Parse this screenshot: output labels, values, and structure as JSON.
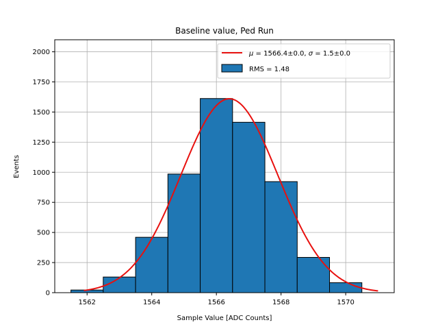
{
  "chart_data": {
    "type": "bar",
    "title": "Baseline value, Ped Run",
    "xlabel": "Sample Value [ADC Counts]",
    "ylabel": "Events",
    "xlim": [
      1561.0,
      1571.5
    ],
    "ylim": [
      0,
      2100
    ],
    "xticks": [
      1562,
      1564,
      1566,
      1568,
      1570
    ],
    "yticks": [
      0,
      250,
      500,
      750,
      1000,
      1250,
      1500,
      1750,
      2000
    ],
    "grid": true,
    "legend_position": "top-right",
    "bins": [
      {
        "left": 1561.5,
        "right": 1562.5,
        "value": 22
      },
      {
        "left": 1562.5,
        "right": 1563.5,
        "value": 130
      },
      {
        "left": 1563.5,
        "right": 1564.5,
        "value": 460
      },
      {
        "left": 1564.5,
        "right": 1565.5,
        "value": 985
      },
      {
        "left": 1565.5,
        "right": 1566.5,
        "value": 1612
      },
      {
        "left": 1566.5,
        "right": 1567.5,
        "value": 1415
      },
      {
        "left": 1567.5,
        "right": 1568.5,
        "value": 922
      },
      {
        "left": 1568.5,
        "right": 1569.5,
        "value": 293
      },
      {
        "left": 1569.5,
        "right": 1570.5,
        "value": 83
      }
    ],
    "fit": {
      "type": "gaussian",
      "mu": 1566.4,
      "sigma": 1.5,
      "amplitude": 1610,
      "x_range": [
        1561.9,
        1571.0
      ]
    },
    "legend": [
      {
        "label_prefix": "μ",
        "label_mid": " = 1566.4±0.0, ",
        "label_sigma": "σ",
        "label_suffix": " = 1.5±0.0",
        "kind": "line"
      },
      {
        "label": "RMS = 1.48",
        "kind": "patch"
      }
    ],
    "colors": {
      "bar_fill": "#1f77b4",
      "bar_edge": "#000000",
      "fit_line": "#e8100e",
      "grid": "#b0b0b0"
    }
  }
}
